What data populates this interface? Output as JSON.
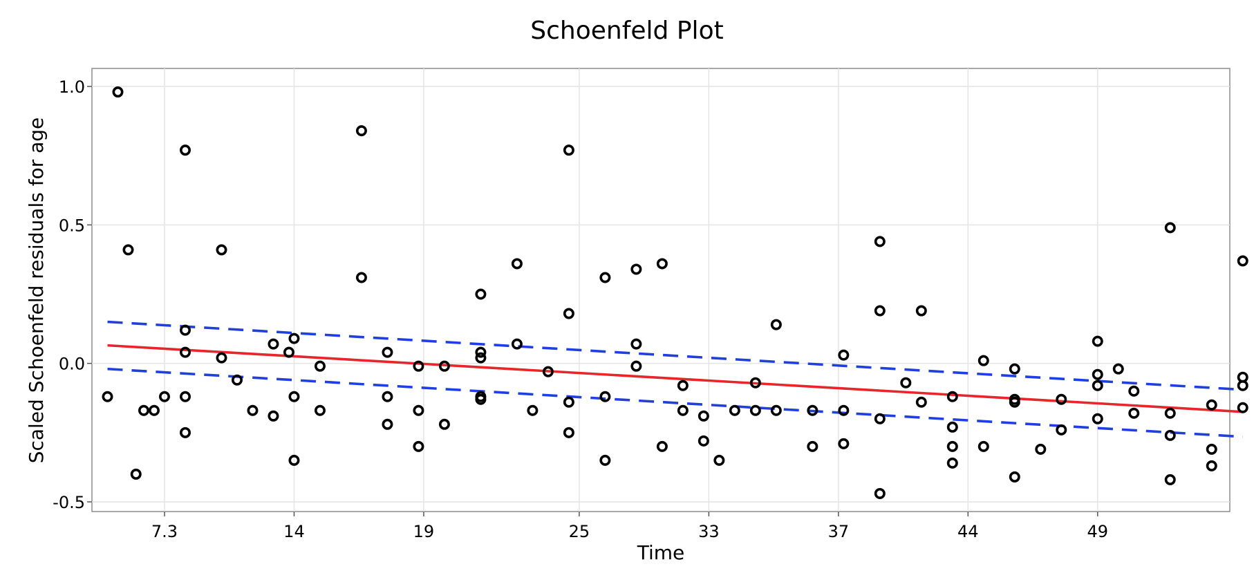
{
  "chart_data": {
    "type": "scatter",
    "title": "Schoenfeld Plot",
    "xlabel": "Time",
    "ylabel": "Scaled Schoenfeld residuals for age",
    "x_axis": {
      "scale": "rank (tick labels are event times)",
      "ticks": [
        {
          "pos": 3,
          "label": "7.3"
        },
        {
          "pos": 8,
          "label": "14"
        },
        {
          "pos": 13,
          "label": "19"
        },
        {
          "pos": 19,
          "label": "25"
        },
        {
          "pos": 24,
          "label": "33"
        },
        {
          "pos": 29,
          "label": "37"
        },
        {
          "pos": 34,
          "label": "44"
        },
        {
          "pos": 39,
          "label": "49"
        }
      ],
      "lim": [
        0.2,
        44.1
      ]
    },
    "y_axis": {
      "ticks": [
        {
          "value": 1.0,
          "label": "1.0"
        },
        {
          "value": 0.5,
          "label": "0.5"
        },
        {
          "value": 0.0,
          "label": "0.0"
        },
        {
          "value": -0.5,
          "label": "-0.5"
        }
      ],
      "lim": [
        -0.535,
        1.065
      ]
    },
    "grid": true,
    "colors": {
      "points": "#000000",
      "fit": "#e8252a",
      "band": "#1f3fe0",
      "grid": "#e4e4e4",
      "frame": "#8c8c8c"
    },
    "series": [
      {
        "kind": "points",
        "points": [
          [
            0.8,
            -0.12
          ],
          [
            1.2,
            0.98
          ],
          [
            1.6,
            0.41
          ],
          [
            1.9,
            -0.4
          ],
          [
            2.2,
            -0.17
          ],
          [
            2.6,
            -0.17
          ],
          [
            3.0,
            -0.12
          ],
          [
            3.8,
            0.77
          ],
          [
            3.8,
            0.12
          ],
          [
            3.8,
            0.04
          ],
          [
            3.8,
            -0.12
          ],
          [
            3.8,
            -0.25
          ],
          [
            5.2,
            0.41
          ],
          [
            5.2,
            0.02
          ],
          [
            5.8,
            -0.06
          ],
          [
            6.4,
            -0.17
          ],
          [
            7.2,
            0.07
          ],
          [
            7.2,
            -0.19
          ],
          [
            7.8,
            0.04
          ],
          [
            8.0,
            0.09
          ],
          [
            8.0,
            -0.12
          ],
          [
            8.0,
            -0.35
          ],
          [
            9.0,
            -0.01
          ],
          [
            9.0,
            -0.17
          ],
          [
            10.6,
            0.84
          ],
          [
            10.6,
            0.31
          ],
          [
            11.6,
            0.04
          ],
          [
            11.6,
            -0.12
          ],
          [
            11.6,
            -0.22
          ],
          [
            12.8,
            -0.01
          ],
          [
            12.8,
            -0.17
          ],
          [
            12.8,
            -0.3
          ],
          [
            13.8,
            -0.01
          ],
          [
            13.8,
            -0.22
          ],
          [
            15.2,
            0.25
          ],
          [
            15.2,
            0.04
          ],
          [
            15.2,
            0.02
          ],
          [
            15.2,
            -0.12
          ],
          [
            15.2,
            -0.13
          ],
          [
            16.6,
            0.36
          ],
          [
            16.6,
            0.07
          ],
          [
            17.2,
            -0.17
          ],
          [
            17.8,
            -0.03
          ],
          [
            18.6,
            0.77
          ],
          [
            18.6,
            0.18
          ],
          [
            18.6,
            -0.14
          ],
          [
            18.6,
            -0.25
          ],
          [
            20.0,
            0.31
          ],
          [
            20.0,
            -0.12
          ],
          [
            20.0,
            -0.35
          ],
          [
            21.2,
            0.34
          ],
          [
            21.2,
            0.07
          ],
          [
            21.2,
            -0.01
          ],
          [
            22.2,
            0.36
          ],
          [
            22.2,
            -0.3
          ],
          [
            23.0,
            -0.08
          ],
          [
            23.0,
            -0.17
          ],
          [
            23.8,
            -0.19
          ],
          [
            23.8,
            -0.28
          ],
          [
            24.4,
            -0.35
          ],
          [
            25.0,
            -0.17
          ],
          [
            25.8,
            -0.17
          ],
          [
            25.8,
            -0.07
          ],
          [
            26.6,
            0.14
          ],
          [
            26.6,
            -0.17
          ],
          [
            28.0,
            -0.17
          ],
          [
            28.0,
            -0.3
          ],
          [
            29.2,
            0.03
          ],
          [
            29.2,
            -0.17
          ],
          [
            29.2,
            -0.29
          ],
          [
            30.6,
            0.44
          ],
          [
            30.6,
            0.19
          ],
          [
            30.6,
            -0.2
          ],
          [
            30.6,
            -0.47
          ],
          [
            31.6,
            -0.07
          ],
          [
            32.2,
            0.19
          ],
          [
            32.2,
            -0.14
          ],
          [
            33.4,
            -0.12
          ],
          [
            33.4,
            -0.23
          ],
          [
            33.4,
            -0.3
          ],
          [
            33.4,
            -0.36
          ],
          [
            34.6,
            0.01
          ],
          [
            34.6,
            -0.3
          ],
          [
            35.8,
            -0.02
          ],
          [
            35.8,
            -0.13
          ],
          [
            35.8,
            -0.14
          ],
          [
            35.8,
            -0.41
          ],
          [
            36.8,
            -0.31
          ],
          [
            37.6,
            -0.13
          ],
          [
            37.6,
            -0.24
          ],
          [
            39.0,
            0.08
          ],
          [
            39.0,
            -0.04
          ],
          [
            39.0,
            -0.08
          ],
          [
            39.0,
            -0.2
          ],
          [
            39.8,
            -0.02
          ],
          [
            40.4,
            -0.1
          ],
          [
            40.4,
            -0.18
          ],
          [
            41.8,
            0.49
          ],
          [
            41.8,
            -0.18
          ],
          [
            41.8,
            -0.26
          ],
          [
            41.8,
            -0.42
          ],
          [
            43.4,
            -0.15
          ],
          [
            43.4,
            -0.31
          ],
          [
            43.4,
            -0.37
          ],
          [
            44.6,
            0.37
          ],
          [
            44.6,
            -0.05
          ],
          [
            44.6,
            -0.08
          ],
          [
            44.6,
            -0.16
          ]
        ]
      },
      {
        "kind": "fit",
        "points": [
          [
            0.8,
            0.065
          ],
          [
            44.6,
            -0.175
          ]
        ]
      },
      {
        "kind": "band-upper",
        "points": [
          [
            0.8,
            0.15
          ],
          [
            44.6,
            -0.095
          ]
        ]
      },
      {
        "kind": "band-lower",
        "points": [
          [
            0.8,
            -0.02
          ],
          [
            44.6,
            -0.265
          ]
        ]
      }
    ]
  }
}
